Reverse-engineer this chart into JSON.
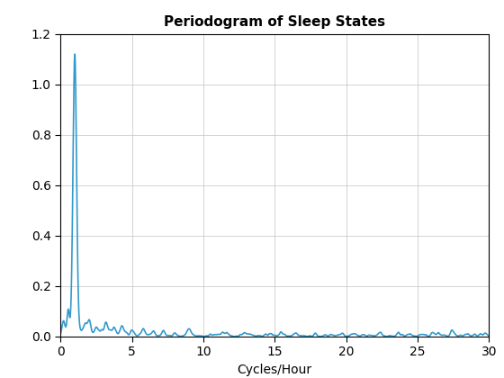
{
  "title": "Periodogram of Sleep States",
  "xlabel": "Cycles/Hour",
  "ylabel": "",
  "xlim": [
    0,
    30
  ],
  "ylim": [
    0,
    1.2
  ],
  "xticks": [
    0,
    5,
    10,
    15,
    20,
    25,
    30
  ],
  "yticks": [
    0,
    0.2,
    0.4,
    0.6,
    0.8,
    1.0,
    1.2
  ],
  "line_color": "#3399CC",
  "line_width": 1.2,
  "bg_color": "#FFFFFF",
  "grid_color": "#C0C0C0",
  "title_fontsize": 11,
  "label_fontsize": 10,
  "tick_fontsize": 10
}
